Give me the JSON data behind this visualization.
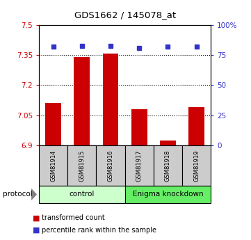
{
  "title": "GDS1662 / 145078_at",
  "samples": [
    "GSM81914",
    "GSM81915",
    "GSM81916",
    "GSM81917",
    "GSM81918",
    "GSM81919"
  ],
  "bar_values": [
    7.11,
    7.34,
    7.357,
    7.08,
    6.925,
    7.09
  ],
  "percentile_values": [
    82,
    83,
    83,
    81,
    82,
    82
  ],
  "ylim_left": [
    6.9,
    7.5
  ],
  "ylim_right": [
    0,
    100
  ],
  "yticks_left": [
    6.9,
    7.05,
    7.2,
    7.35,
    7.5
  ],
  "yticks_right": [
    0,
    25,
    50,
    75,
    100
  ],
  "ytick_labels_left": [
    "6.9",
    "7.05",
    "7.2",
    "7.35",
    "7.5"
  ],
  "ytick_labels_right": [
    "0",
    "25",
    "50",
    "75",
    "100%"
  ],
  "bar_color": "#cc0000",
  "marker_color": "#3333cc",
  "bar_bottom": 6.9,
  "gridlines": [
    7.05,
    7.2,
    7.35
  ],
  "groups": [
    {
      "label": "control",
      "start": 0,
      "end": 3,
      "color": "#ccffcc"
    },
    {
      "label": "Enigma knockdown",
      "start": 3,
      "end": 6,
      "color": "#66ee66"
    }
  ],
  "protocol_label": "protocol",
  "legend_items": [
    {
      "color": "#cc0000",
      "label": "transformed count"
    },
    {
      "color": "#3333cc",
      "label": "percentile rank within the sample"
    }
  ],
  "sample_box_color": "#cccccc",
  "fig_width": 3.61,
  "fig_height": 3.45,
  "dpi": 100
}
